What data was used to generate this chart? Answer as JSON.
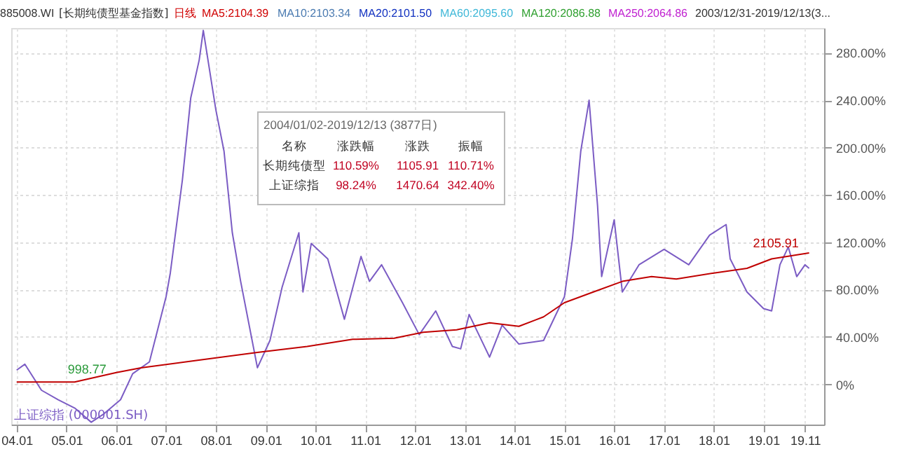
{
  "chart_data": {
    "type": "line",
    "annotations": [
      "885008.WI",
      "[长期纯债型基金指数]",
      "日线",
      "MA5:2104.39",
      "MA10:2103.34",
      "MA20:2101.50",
      "MA60:2095.60",
      "MA120:2086.88",
      "MA250:2064.86",
      "2003/12/31-2019/12/13(3...",
      "2004/01/02-2019/12/13 (3877日)",
      "名称",
      "涨跌幅",
      "涨跌",
      "振幅",
      "长期纯债型",
      "110.59%",
      "1105.91",
      "110.71%",
      "上证综指",
      "98.24%",
      "1470.64",
      "342.40%",
      {
        "text": "998.77",
        "x": "2005-06",
        "y": 3
      },
      {
        "text": "2105.91",
        "x": "2019-04",
        "y": 110
      }
    ],
    "xlim": [
      "2003-11-22",
      "2020-03-20"
    ],
    "xticks": [
      {
        "value": "2004-01-01",
        "label": "04.01"
      },
      {
        "value": "2005-01-01",
        "label": "05.01"
      },
      {
        "value": "2006-01-01",
        "label": "06.01"
      },
      {
        "value": "2007-01-01",
        "label": "07.01"
      },
      {
        "value": "2008-01-01",
        "label": "08.01"
      },
      {
        "value": "2009-01-01",
        "label": "09.01"
      },
      {
        "value": "2010-01-01",
        "label": "10.01"
      },
      {
        "value": "2011-01-01",
        "label": "11.01"
      },
      {
        "value": "2012-01-01",
        "label": "12.01"
      },
      {
        "value": "2013-01-01",
        "label": "13.01"
      },
      {
        "value": "2014-01-01",
        "label": "14.01"
      },
      {
        "value": "2015-01-01",
        "label": "15.01"
      },
      {
        "value": "2016-01-01",
        "label": "16.01"
      },
      {
        "value": "2017-01-01",
        "label": "17.01"
      },
      {
        "value": "2018-01-01",
        "label": "18.01"
      },
      {
        "value": "2019-01-01",
        "label": "19.01"
      },
      {
        "value": "2019-11-01",
        "label": "19.11"
      }
    ],
    "ylim": [
      -34,
      301
    ],
    "yticks": [
      {
        "value": 0,
        "label": "0%"
      },
      {
        "value": 40,
        "label": "40.00%"
      },
      {
        "value": 80,
        "label": "80.00%"
      },
      {
        "value": 120,
        "label": "120.00%"
      },
      {
        "value": 160,
        "label": "160.00%"
      },
      {
        "value": 200,
        "label": "200.00%"
      },
      {
        "value": 240,
        "label": "240.00%"
      },
      {
        "value": 280,
        "label": "280.00%"
      }
    ],
    "grid": true,
    "series": [
      {
        "name": "上证综指 (000001.SH)",
        "color": "#7b5cc4",
        "x": [
          "2004-01",
          "2004-03",
          "2004-07",
          "2004-11",
          "2005-03",
          "2005-07",
          "2005-10",
          "2006-02",
          "2006-05",
          "2006-09",
          "2007-01",
          "2007-02",
          "2007-05",
          "2007-07",
          "2007-09",
          "2007-10",
          "2008-01",
          "2008-03",
          "2008-05",
          "2008-07",
          "2008-11",
          "2009-02",
          "2009-05",
          "2009-09",
          "2009-10",
          "2009-12",
          "2010-04",
          "2010-08",
          "2010-12",
          "2011-02",
          "2011-05",
          "2011-10",
          "2012-02",
          "2012-06",
          "2012-10",
          "2012-12",
          "2013-02",
          "2013-07",
          "2013-10",
          "2014-02",
          "2014-08",
          "2015-01",
          "2015-03",
          "2015-05",
          "2015-07",
          "2015-09",
          "2015-10",
          "2016-01",
          "2016-03",
          "2016-07",
          "2017-01",
          "2017-07",
          "2017-12",
          "2018-04",
          "2018-05",
          "2018-09",
          "2019-01",
          "2019-03",
          "2019-05",
          "2019-07",
          "2019-09",
          "2019-11",
          "2019-12"
        ],
        "values": [
          12,
          17,
          -5,
          -13,
          -20,
          -32,
          -25,
          -13,
          9,
          19,
          74,
          94,
          173,
          242,
          274,
          299,
          232,
          197,
          128,
          87,
          14,
          37,
          82,
          128,
          78,
          119,
          106,
          55,
          108,
          87,
          101,
          69,
          42,
          62,
          32,
          30,
          59,
          23,
          50,
          34,
          37,
          74,
          123,
          197,
          240,
          151,
          91,
          139,
          78,
          101,
          114,
          101,
          126,
          135,
          106,
          78,
          64,
          62,
          101,
          116,
          91,
          101,
          98
        ]
      },
      {
        "color": "#c00000",
        "x": [
          "2004-01",
          "2005-03",
          "2006-01",
          "2006-07",
          "2007-08",
          "2008-11",
          "2009-11",
          "2010-10",
          "2011-08",
          "2012-03",
          "2012-11",
          "2013-07",
          "2014-02",
          "2014-08",
          "2015-01",
          "2015-08",
          "2016-03",
          "2016-10",
          "2017-04",
          "2018-01",
          "2018-09",
          "2019-03",
          "2019-12"
        ],
        "values": [
          2,
          2,
          10,
          14,
          20,
          27,
          32,
          38,
          39,
          44,
          46,
          52,
          49,
          57,
          69,
          78,
          87,
          91,
          89,
          94,
          98,
          106,
          111
        ]
      }
    ]
  }
}
